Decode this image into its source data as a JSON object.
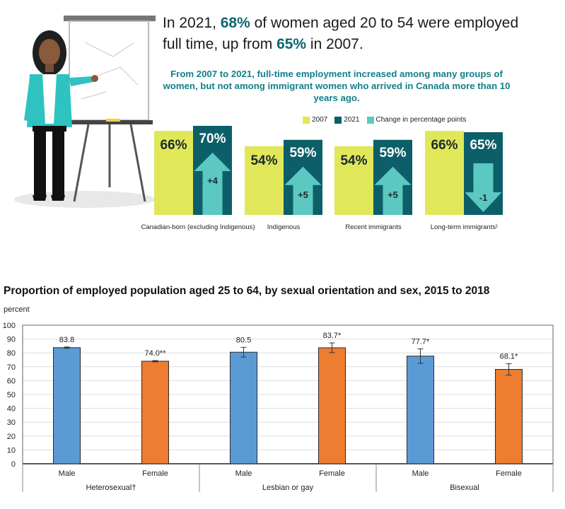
{
  "infographic": {
    "headline": {
      "p1": "In 2021, ",
      "h1": "68%",
      "p2": " of women aged 20 to 54 were employed full time, up from ",
      "h2": "65%",
      "p3": " in 2007."
    },
    "subhead": "From 2007 to 2021, full-time employment increased among many groups of women, but not among immigrant women who arrived in Canada more than 10 years ago.",
    "legend": [
      "2007",
      "2021",
      "Change in percentage points"
    ],
    "colors": {
      "y2007": "#e0e85a",
      "y2021": "#0c5f68",
      "change": "#5bc8c2"
    },
    "groups": [
      {
        "label": "Canadian-born (excluding Indigenous)",
        "v2007_label": "66%",
        "v2021_label": "70%",
        "change_label": "+4",
        "v2007": 66,
        "v2021": 70,
        "change": 4
      },
      {
        "label": "Indigenous",
        "v2007_label": "54%",
        "v2021_label": "59%",
        "change_label": "+5",
        "v2007": 54,
        "v2021": 59,
        "change": 5
      },
      {
        "label": "Recent immigrants",
        "v2007_label": "54%",
        "v2021_label": "59%",
        "change_label": "+5",
        "v2007": 54,
        "v2021": 59,
        "change": 5
      },
      {
        "label": "Long-term immigrants¹",
        "v2007_label": "66%",
        "v2021_label": "65%",
        "change_label": "-1",
        "v2007": 66,
        "v2021": 65,
        "change": -1
      }
    ]
  },
  "chart_data": {
    "type": "bar",
    "title": "Proportion of employed population  aged 25 to 64, by sexual orientation and sex, 2015 to 2018",
    "ylabel": "percent",
    "ylim": [
      0,
      100
    ],
    "yticks": [
      "0",
      "10",
      "20",
      "30",
      "40",
      "50",
      "60",
      "70",
      "80",
      "90",
      "100"
    ],
    "grid": true,
    "colors": {
      "male": "#5b9bd5",
      "female": "#ed7d31"
    },
    "categories": [
      "Male",
      "Female",
      "Male",
      "Female",
      "Male",
      "Female"
    ],
    "groups": [
      "Heterosexual†",
      "Lesbian or gay",
      "Bisexual"
    ],
    "values": [
      83.8,
      74.0,
      80.5,
      83.7,
      77.7,
      68.1
    ],
    "value_labels": [
      "83.8",
      "74.0**",
      "80.5",
      "83.7*",
      "77.7*",
      "68.1*"
    ],
    "error_low": [
      83.3,
      73.5,
      77.0,
      80.2,
      72.5,
      64.0
    ],
    "error_high": [
      84.3,
      74.5,
      84.0,
      87.2,
      82.9,
      72.2
    ]
  }
}
